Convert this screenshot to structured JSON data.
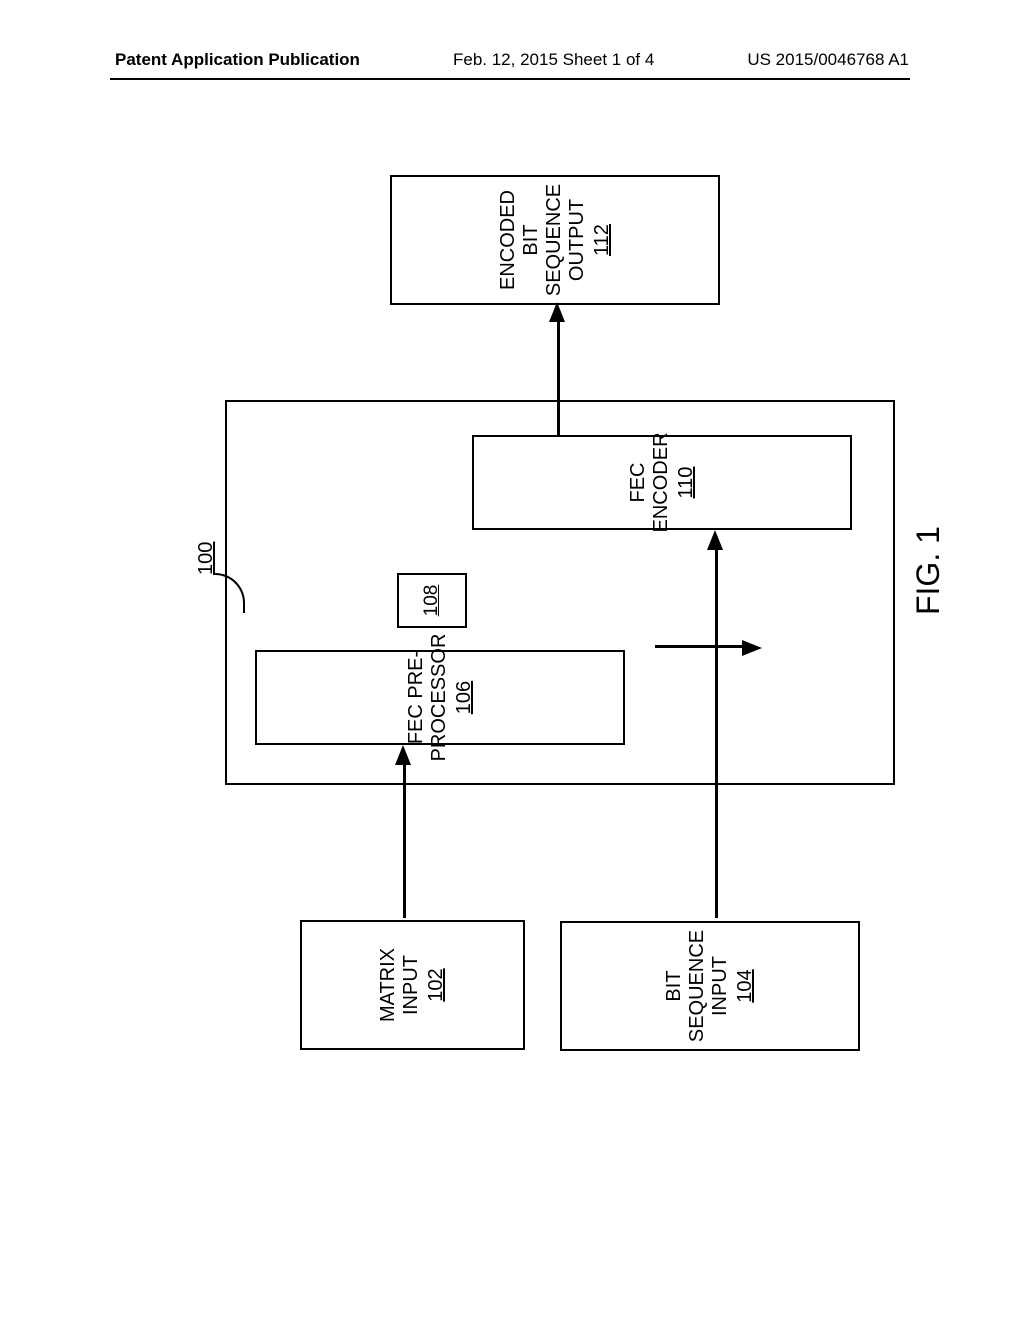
{
  "header": {
    "left": "Patent Application Publication",
    "center": "Feb. 12, 2015  Sheet 1 of 4",
    "right": "US 2015/0046768 A1"
  },
  "diagram": {
    "system_ref": "100",
    "matrix_input": {
      "label": "MATRIX INPUT",
      "ref": "102"
    },
    "bit_seq_input": {
      "label": "BIT SEQUENCE INPUT",
      "ref": "104"
    },
    "fec_preproc": {
      "label": "FEC PRE-PROCESSOR",
      "ref": "106"
    },
    "small_box": {
      "ref": "108"
    },
    "fec_encoder": {
      "label": "FEC ENCODER",
      "ref": "110"
    },
    "output": {
      "line1": "ENCODED BIT",
      "line2": "SEQUENCE OUTPUT",
      "ref": "112"
    },
    "figure_label": "FIG. 1"
  },
  "style": {
    "border_color": "#000000",
    "background": "#ffffff",
    "border_width": 2.5,
    "label_fontsize": 20,
    "header_fontsize": 17,
    "fig_fontsize": 32
  }
}
